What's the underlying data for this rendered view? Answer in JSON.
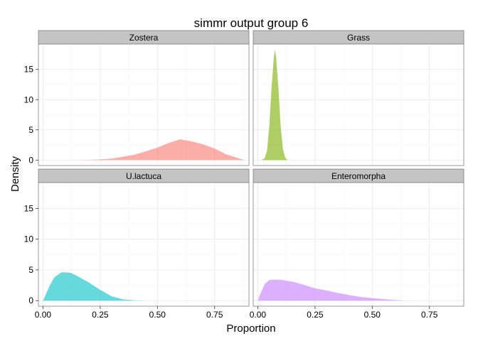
{
  "chart_data": {
    "type": "area",
    "title": "simmr output group 6",
    "xlabel": "Proportion",
    "ylabel": "Density",
    "xlim": [
      -0.02,
      0.9
    ],
    "ylim": [
      -0.9,
      19.2
    ],
    "x_ticks": [
      0,
      0.25,
      0.5,
      0.75
    ],
    "x_tick_labels": [
      "0.00",
      "0.25",
      "0.50",
      "0.75"
    ],
    "y_ticks": [
      0,
      5,
      10,
      15
    ],
    "y_tick_labels": [
      "0",
      "5",
      "10",
      "15"
    ],
    "grid": true,
    "layout": "facet_wrap 2x2",
    "panels": [
      {
        "name": "Zostera",
        "color": "#F8766D",
        "points": [
          [
            0.15,
            0
          ],
          [
            0.2,
            0.03
          ],
          [
            0.25,
            0.12
          ],
          [
            0.3,
            0.25
          ],
          [
            0.35,
            0.55
          ],
          [
            0.4,
            0.9
          ],
          [
            0.45,
            1.45
          ],
          [
            0.5,
            2.05
          ],
          [
            0.55,
            2.85
          ],
          [
            0.6,
            3.45
          ],
          [
            0.65,
            3.1
          ],
          [
            0.7,
            2.6
          ],
          [
            0.75,
            1.9
          ],
          [
            0.8,
            0.95
          ],
          [
            0.85,
            0.35
          ],
          [
            0.88,
            0
          ]
        ]
      },
      {
        "name": "Grass",
        "color": "#7CAE00",
        "points": [
          [
            0.015,
            0
          ],
          [
            0.03,
            0.3
          ],
          [
            0.04,
            1.5
          ],
          [
            0.05,
            5.5
          ],
          [
            0.06,
            12
          ],
          [
            0.07,
            17
          ],
          [
            0.075,
            18.3
          ],
          [
            0.08,
            17
          ],
          [
            0.09,
            12
          ],
          [
            0.1,
            5.5
          ],
          [
            0.11,
            1.8
          ],
          [
            0.12,
            0.4
          ],
          [
            0.13,
            0
          ]
        ]
      },
      {
        "name": "U.lactuca",
        "color": "#00BFC4",
        "points": [
          [
            0,
            0
          ],
          [
            0.01,
            0.8
          ],
          [
            0.03,
            2.5
          ],
          [
            0.05,
            3.8
          ],
          [
            0.08,
            4.6
          ],
          [
            0.1,
            4.6
          ],
          [
            0.12,
            4.55
          ],
          [
            0.15,
            4.0
          ],
          [
            0.2,
            2.95
          ],
          [
            0.25,
            1.75
          ],
          [
            0.3,
            0.7
          ],
          [
            0.35,
            0.2
          ],
          [
            0.4,
            0.05
          ],
          [
            0.45,
            0
          ]
        ]
      },
      {
        "name": "Enteromorpha",
        "color": "#C77CFF",
        "points": [
          [
            0,
            0
          ],
          [
            0.01,
            1.0
          ],
          [
            0.03,
            2.7
          ],
          [
            0.05,
            3.35
          ],
          [
            0.08,
            3.4
          ],
          [
            0.1,
            3.4
          ],
          [
            0.15,
            3.1
          ],
          [
            0.2,
            2.6
          ],
          [
            0.25,
            2.0
          ],
          [
            0.3,
            1.65
          ],
          [
            0.35,
            1.25
          ],
          [
            0.4,
            0.9
          ],
          [
            0.45,
            0.6
          ],
          [
            0.5,
            0.42
          ],
          [
            0.55,
            0.25
          ],
          [
            0.6,
            0.1
          ],
          [
            0.65,
            0
          ]
        ]
      }
    ]
  }
}
